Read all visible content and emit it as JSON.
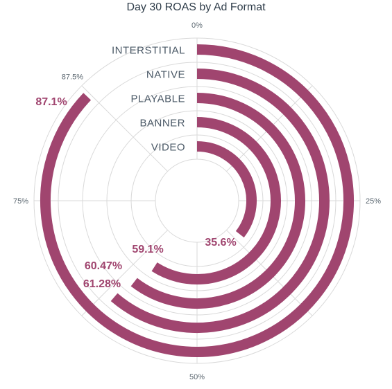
{
  "chart_data": {
    "type": "radial-bar",
    "title": "Day 30 ROAS by Ad Format",
    "max": 100,
    "ticks": [
      {
        "value": 0,
        "label": "0%"
      },
      {
        "value": 25,
        "label": "25%"
      },
      {
        "value": 50,
        "label": "50%"
      },
      {
        "value": 75,
        "label": "75%"
      },
      {
        "value": 87.5,
        "label": "87.5%"
      }
    ],
    "categories": [
      "INTERSTITIAL",
      "NATIVE",
      "PLAYABLE",
      "BANNER",
      "VIDEO"
    ],
    "values": [
      87.1,
      61.28,
      60.47,
      59.1,
      35.6
    ],
    "value_labels": [
      "87.1%",
      "61.28%",
      "60.47%",
      "59.1%",
      "35.6%"
    ],
    "bar_color": "#a0456f",
    "grid": true
  }
}
